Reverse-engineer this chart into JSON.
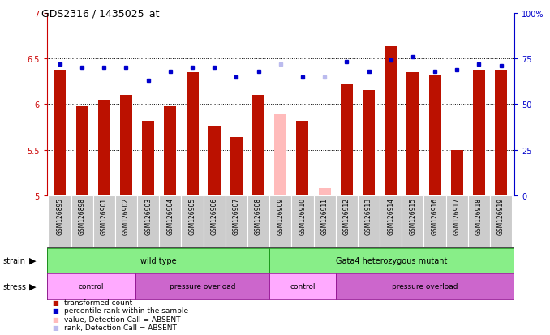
{
  "title": "GDS2316 / 1435025_at",
  "samples": [
    "GSM126895",
    "GSM126898",
    "GSM126901",
    "GSM126902",
    "GSM126903",
    "GSM126904",
    "GSM126905",
    "GSM126906",
    "GSM126907",
    "GSM126908",
    "GSM126909",
    "GSM126910",
    "GSM126911",
    "GSM126912",
    "GSM126913",
    "GSM126914",
    "GSM126915",
    "GSM126916",
    "GSM126917",
    "GSM126918",
    "GSM126919"
  ],
  "bar_values": [
    6.38,
    5.98,
    6.05,
    6.1,
    5.82,
    5.98,
    6.35,
    5.76,
    5.64,
    6.1,
    5.9,
    5.82,
    5.08,
    6.22,
    6.15,
    6.63,
    6.35,
    6.32,
    5.5,
    6.38,
    6.38
  ],
  "bar_absent": [
    false,
    false,
    false,
    false,
    false,
    false,
    false,
    false,
    false,
    false,
    true,
    false,
    true,
    false,
    false,
    false,
    false,
    false,
    false,
    false,
    false
  ],
  "rank_pct": [
    72,
    70,
    70,
    70,
    63,
    68,
    70,
    70,
    65,
    68,
    72,
    65,
    65,
    73,
    68,
    74,
    76,
    68,
    69,
    72,
    71
  ],
  "rank_absent": [
    false,
    false,
    false,
    false,
    false,
    false,
    false,
    false,
    false,
    false,
    true,
    false,
    true,
    false,
    false,
    false,
    false,
    false,
    false,
    false,
    false
  ],
  "ylim_left": [
    5.0,
    7.0
  ],
  "ylim_right": [
    0,
    100
  ],
  "yticks_left": [
    5.0,
    5.5,
    6.0,
    6.5,
    7.0
  ],
  "ytick_labels_left": [
    "5",
    "5.5",
    "6",
    "6.5",
    "7"
  ],
  "yticks_right": [
    0,
    25,
    50,
    75,
    100
  ],
  "ytick_labels_right": [
    "0",
    "25",
    "50",
    "75",
    "100%"
  ],
  "hlines": [
    5.5,
    6.0,
    6.5
  ],
  "bar_color": "#bb1100",
  "bar_absent_color": "#ffbbbb",
  "rank_color": "#0000cc",
  "rank_absent_color": "#bbbbee",
  "bg_color": "#ffffff",
  "plot_bg": "#ffffff",
  "xlabel_bg": "#cccccc",
  "strain_color": "#88ee88",
  "stress_control_color": "#ffaaff",
  "stress_overload_color": "#cc66cc",
  "strain_groups": [
    {
      "label": "wild type",
      "start": 0,
      "end": 9
    },
    {
      "label": "Gata4 heterozygous mutant",
      "start": 10,
      "end": 20
    }
  ],
  "stress_groups": [
    {
      "label": "control",
      "start": 0,
      "end": 3,
      "type": "control"
    },
    {
      "label": "pressure overload",
      "start": 4,
      "end": 9,
      "type": "overload"
    },
    {
      "label": "control",
      "start": 10,
      "end": 12,
      "type": "control"
    },
    {
      "label": "pressure overload",
      "start": 13,
      "end": 20,
      "type": "overload"
    }
  ],
  "legend_labels": [
    "transformed count",
    "percentile rank within the sample",
    "value, Detection Call = ABSENT",
    "rank, Detection Call = ABSENT"
  ],
  "legend_colors": [
    "#bb1100",
    "#0000cc",
    "#ffbbbb",
    "#bbbbee"
  ],
  "legend_markers": [
    "s",
    "s",
    "s",
    "s"
  ]
}
